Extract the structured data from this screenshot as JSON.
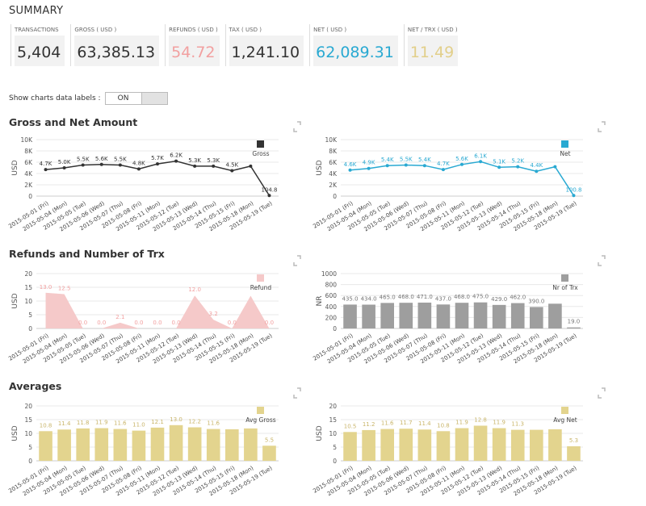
{
  "summary": {
    "title": "SUMMARY",
    "cards": [
      {
        "label": "TRANSACTIONS",
        "value": "5,404",
        "color": "#333333"
      },
      {
        "label": "GROSS ( USD )",
        "value": "63,385.13",
        "color": "#333333"
      },
      {
        "label": "REFUNDS ( USD )",
        "value": "54.72",
        "color": "#f2a0a0"
      },
      {
        "label": "TAX ( USD )",
        "value": "1,241.10",
        "color": "#333333"
      },
      {
        "label": "NET ( USD )",
        "value": "62,089.31",
        "color": "#29a9d2"
      },
      {
        "label": "NET / TRX ( USD )",
        "value": "11.49",
        "color": "#e2cf8a"
      }
    ]
  },
  "toggle": {
    "label": "Show charts data labels :",
    "state": "ON"
  },
  "sections": [
    "Gross and Net Amount",
    "Refunds and Number of Trx",
    "Averages"
  ],
  "chart_data": [
    {
      "type": "line",
      "y_label": "USD",
      "categories": [
        "2015-05-01 (Fri)",
        "2015-05-04 (Mon)",
        "2015-05-05 (Tue)",
        "2015-05-06 (Wed)",
        "2015-05-07 (Thu)",
        "2015-05-08 (Fri)",
        "2015-05-11 (Mon)",
        "2015-05-12 (Tue)",
        "2015-05-13 (Wed)",
        "2015-05-14 (Thu)",
        "2015-05-15 (Fri)",
        "2015-05-18 (Mon)",
        "2015-05-19 (Tue)"
      ],
      "series": [
        {
          "name": "Gross",
          "color": "#333333",
          "values": [
            4700,
            5000,
            5500,
            5600,
            5500,
            4800,
            5700,
            6200,
            5300,
            5300,
            4500,
            5300,
            104.8
          ],
          "value_labels": [
            "4.7K",
            "5.0K",
            "5.5K",
            "5.6K",
            "5.5K",
            "4.8K",
            "5.7K",
            "6.2K",
            "5.3K",
            "5.3K",
            "4.5K",
            null,
            "104.8"
          ]
        }
      ],
      "ylim": [
        0,
        10000
      ],
      "yticks": [
        0,
        {
          "value": 2000,
          "label": "2K"
        },
        {
          "value": 4000,
          "label": "4K"
        },
        {
          "value": 6000,
          "label": "6K"
        },
        {
          "value": 8000,
          "label": "8K"
        },
        {
          "value": 10000,
          "label": "10K"
        }
      ]
    },
    {
      "type": "line",
      "y_label": "USD",
      "categories": [
        "2015-05-01 (Fri)",
        "2015-05-04 (Mon)",
        "2015-05-05 (Tue)",
        "2015-05-06 (Wed)",
        "2015-05-07 (Thu)",
        "2015-05-08 (Fri)",
        "2015-05-11 (Mon)",
        "2015-05-12 (Tue)",
        "2015-05-13 (Wed)",
        "2015-05-14 (Thu)",
        "2015-05-15 (Fri)",
        "2015-05-18 (Mon)",
        "2015-05-19 (Tue)"
      ],
      "series": [
        {
          "name": "Net",
          "color": "#29a9d2",
          "values": [
            4600,
            4900,
            5400,
            5500,
            5400,
            4700,
            5600,
            6100,
            5100,
            5200,
            4400,
            5200,
            100.8
          ],
          "value_labels": [
            "4.6K",
            "4.9K",
            "5.4K",
            "5.5K",
            "5.4K",
            "4.7K",
            "5.6K",
            "6.1K",
            "5.1K",
            "5.2K",
            "4.4K",
            null,
            "100.8"
          ]
        }
      ],
      "ylim": [
        0,
        10000
      ],
      "yticks": [
        0,
        {
          "value": 2000,
          "label": "2K"
        },
        {
          "value": 4000,
          "label": "4K"
        },
        {
          "value": 6000,
          "label": "6K"
        },
        {
          "value": 8000,
          "label": "8K"
        },
        {
          "value": 10000,
          "label": "10K"
        }
      ]
    },
    {
      "type": "area",
      "y_label": "USD",
      "categories": [
        "2015-05-01 (Fri)",
        "2015-05-04 (Mon)",
        "2015-05-05 (Tue)",
        "2015-05-06 (Wed)",
        "2015-05-07 (Thu)",
        "2015-05-08 (Fri)",
        "2015-05-11 (Mon)",
        "2015-05-12 (Tue)",
        "2015-05-13 (Wed)",
        "2015-05-14 (Thu)",
        "2015-05-15 (Fri)",
        "2015-05-18 (Mon)",
        "2015-05-19 (Tue)"
      ],
      "series": [
        {
          "name": "Refund",
          "color": "#f5c9c9",
          "values": [
            13.0,
            12.5,
            0,
            0,
            2.1,
            0,
            0,
            0,
            12.0,
            3.2,
            0,
            11.9,
            0
          ],
          "value_labels": [
            "13.0",
            "12.5",
            "0.0",
            "0.0",
            "2.1",
            "0.0",
            "0.0",
            "0.0",
            "12.0",
            "3.2",
            "0.0",
            null,
            "0.0"
          ]
        }
      ],
      "ylim": [
        0,
        20
      ],
      "yticks": [
        0,
        5,
        10,
        15,
        20
      ]
    },
    {
      "type": "bar",
      "y_label": "NR",
      "categories": [
        "2015-05-01 (Fri)",
        "2015-05-04 (Mon)",
        "2015-05-05 (Tue)",
        "2015-05-06 (Wed)",
        "2015-05-07 (Thu)",
        "2015-05-08 (Fri)",
        "2015-05-11 (Mon)",
        "2015-05-12 (Tue)",
        "2015-05-13 (Wed)",
        "2015-05-14 (Thu)",
        "2015-05-15 (Fri)",
        "2015-05-18 (Mon)",
        "2015-05-19 (Tue)"
      ],
      "series": [
        {
          "name": "Nr of Trx",
          "color": "#9e9e9e",
          "values": [
            435,
            434,
            465,
            468,
            471,
            437,
            468,
            475,
            429,
            462,
            390,
            451,
            19
          ],
          "value_labels": [
            "435.0",
            "434.0",
            "465.0",
            "468.0",
            "471.0",
            "437.0",
            "468.0",
            "475.0",
            "429.0",
            "462.0",
            "390.0",
            null,
            "19.0"
          ]
        }
      ],
      "ylim": [
        0,
        1000
      ],
      "yticks": [
        0,
        200,
        400,
        600,
        800,
        1000
      ]
    },
    {
      "type": "bar",
      "y_label": "USD",
      "categories": [
        "2015-05-01 (Fri)",
        "2015-05-04 (Mon)",
        "2015-05-05 (Tue)",
        "2015-05-06 (Wed)",
        "2015-05-07 (Thu)",
        "2015-05-08 (Fri)",
        "2015-05-11 (Mon)",
        "2015-05-12 (Tue)",
        "2015-05-13 (Wed)",
        "2015-05-14 (Thu)",
        "2015-05-15 (Fri)",
        "2015-05-18 (Mon)",
        "2015-05-19 (Tue)"
      ],
      "series": [
        {
          "name": "Avg Gross",
          "color": "#e3d48e",
          "values": [
            10.8,
            11.4,
            11.8,
            11.9,
            11.6,
            11.0,
            12.1,
            13.0,
            12.2,
            11.6,
            11.5,
            11.8,
            5.5
          ],
          "value_labels": [
            "10.8",
            "11.4",
            "11.8",
            "11.9",
            "11.6",
            "11.0",
            "12.1",
            "13.0",
            "12.2",
            "11.6",
            null,
            null,
            "5.5"
          ]
        }
      ],
      "ylim": [
        0,
        20
      ],
      "yticks": [
        0,
        5,
        10,
        15,
        20
      ]
    },
    {
      "type": "bar",
      "y_label": "USD",
      "categories": [
        "2015-05-01 (Fri)",
        "2015-05-04 (Mon)",
        "2015-05-05 (Tue)",
        "2015-05-06 (Wed)",
        "2015-05-07 (Thu)",
        "2015-05-08 (Fri)",
        "2015-05-11 (Mon)",
        "2015-05-12 (Tue)",
        "2015-05-13 (Wed)",
        "2015-05-14 (Thu)",
        "2015-05-15 (Fri)",
        "2015-05-18 (Mon)",
        "2015-05-19 (Tue)"
      ],
      "series": [
        {
          "name": "Avg Net",
          "color": "#e3d48e",
          "values": [
            10.5,
            11.2,
            11.6,
            11.7,
            11.4,
            10.8,
            11.9,
            12.8,
            11.9,
            11.3,
            11.3,
            11.5,
            5.3
          ],
          "value_labels": [
            "10.5",
            "11.2",
            "11.6",
            "11.7",
            "11.4",
            "10.8",
            "11.9",
            "12.8",
            "11.9",
            "11.3",
            null,
            null,
            "5.3"
          ]
        }
      ],
      "ylim": [
        0,
        20
      ],
      "yticks": [
        0,
        5,
        10,
        15,
        20
      ]
    }
  ]
}
